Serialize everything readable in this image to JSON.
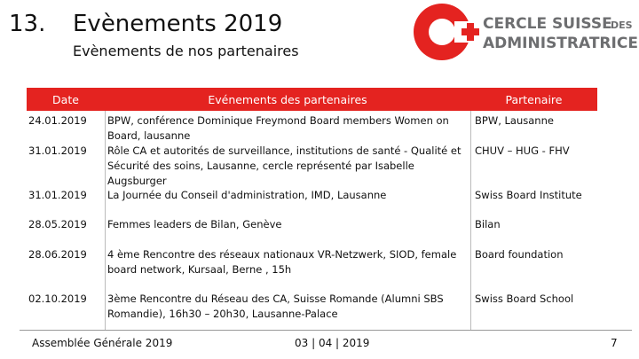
{
  "header": {
    "number": "13.",
    "title": "Evènements 2019",
    "subtitle": "Evènements de nos partenaires"
  },
  "logo": {
    "line1": "CERCLE SUISSE",
    "line1_small": "DES",
    "line2": "ADMINISTRATRICES"
  },
  "table": {
    "columns": [
      "Date",
      "Evénements des partenaires",
      "Partenaire"
    ],
    "rows": [
      [
        "24.01.2019",
        "BPW, conférence Dominique Freymond Board members Women on Board, lausanne",
        "BPW, Lausanne"
      ],
      [
        "31.01.2019",
        "Rôle CA et autorités de surveillance, institutions de santé - Qualité et Sécurité des soins, Lausanne, cercle représenté par Isabelle Augsburger",
        "CHUV – HUG - FHV"
      ],
      [
        "31.01.2019",
        "La Journée du Conseil d'administration, IMD, Lausanne",
        "Swiss Board Institute"
      ],
      [
        "28.05.2019",
        "Femmes leaders de Bilan, Genève",
        "Bilan"
      ],
      [
        "28.06.2019",
        "4 ème Rencontre des réseaux nationaux VR-Netzwerk, SIOD, female board network, Kursaal, Berne , 15h",
        "Board foundation"
      ],
      [
        "02.10.2019",
        "3ème Rencontre du Réseau des CA, Suisse Romande (Alumni SBS Romandie), 16h30 – 20h30, Lausanne-Palace",
        "Swiss Board School"
      ]
    ]
  },
  "footer": {
    "left": "Assemblée Générale 2019",
    "center": "03 | 04 | 2019",
    "page": "7"
  }
}
